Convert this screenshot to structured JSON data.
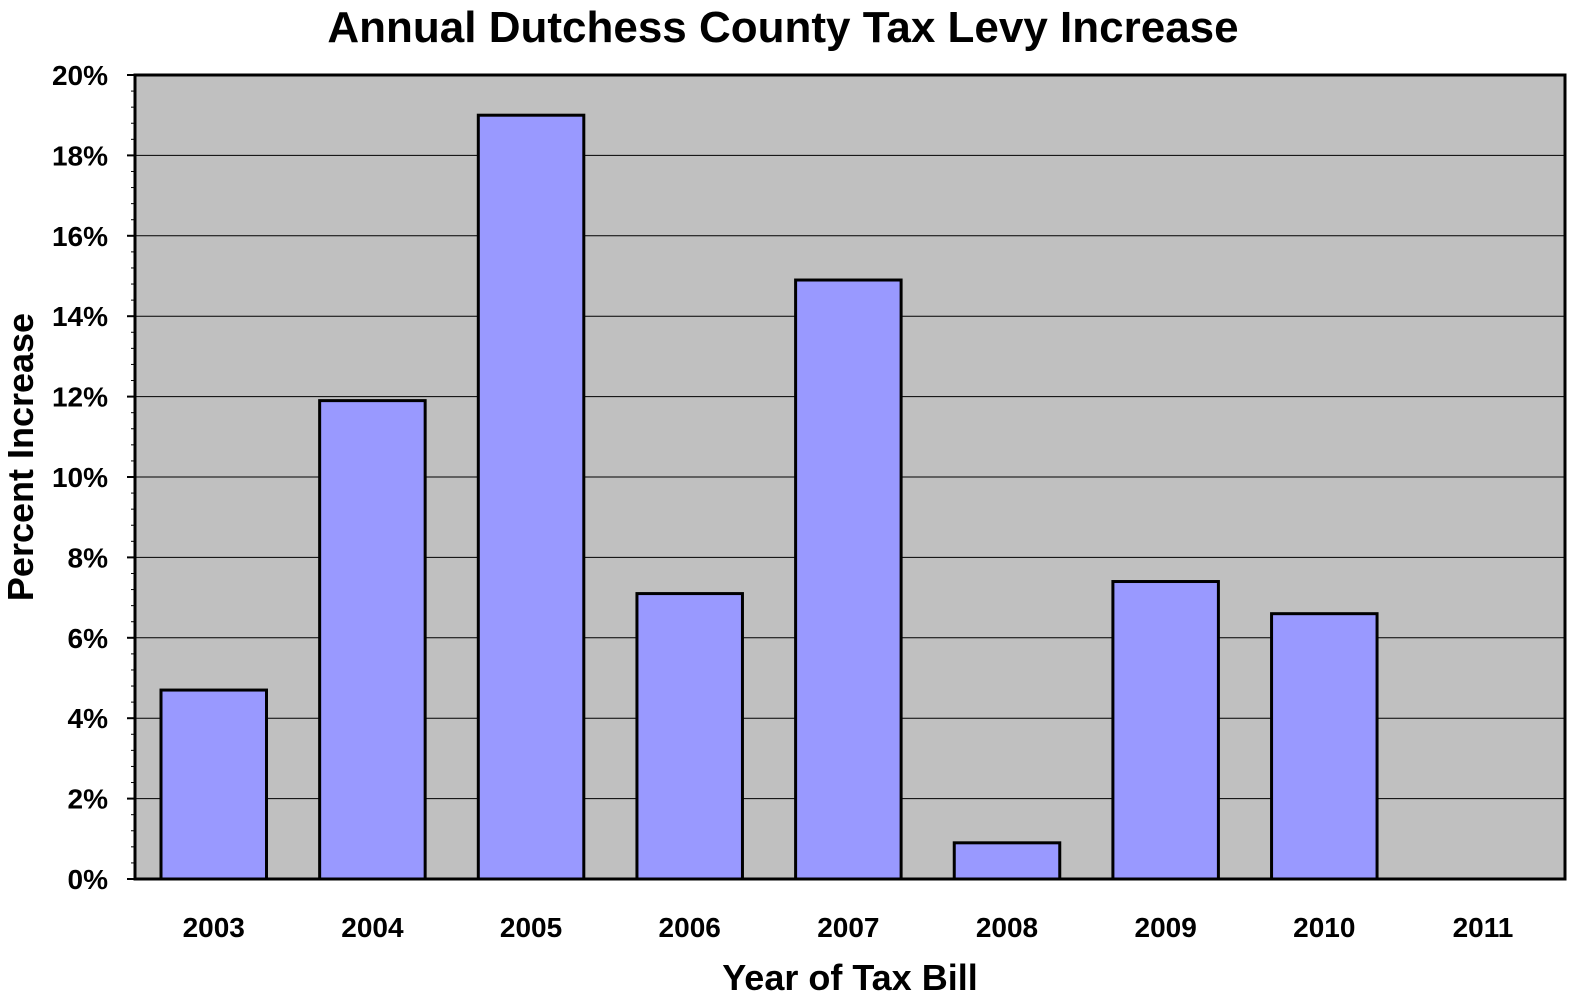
{
  "chart_data": {
    "type": "bar",
    "title": "Annual Dutchess County Tax Levy Increase",
    "xlabel": "Year of Tax Bill",
    "ylabel": "Percent Increase",
    "categories": [
      "2003",
      "2004",
      "2005",
      "2006",
      "2007",
      "2008",
      "2009",
      "2010",
      "2011"
    ],
    "values": [
      4.7,
      11.9,
      19.0,
      7.1,
      14.9,
      0.9,
      7.4,
      6.6,
      null
    ],
    "ylim": [
      0,
      20
    ],
    "yticks": [
      0,
      2,
      4,
      6,
      8,
      10,
      12,
      14,
      16,
      18,
      20
    ],
    "ytick_labels": [
      "0%",
      "2%",
      "4%",
      "6%",
      "8%",
      "10%",
      "12%",
      "14%",
      "16%",
      "18%",
      "20%"
    ],
    "grid": true,
    "colors": {
      "bar": "#9999ff",
      "plot_background": "#c0c0c0",
      "gridline": "#000000",
      "outline": "#000000"
    }
  }
}
